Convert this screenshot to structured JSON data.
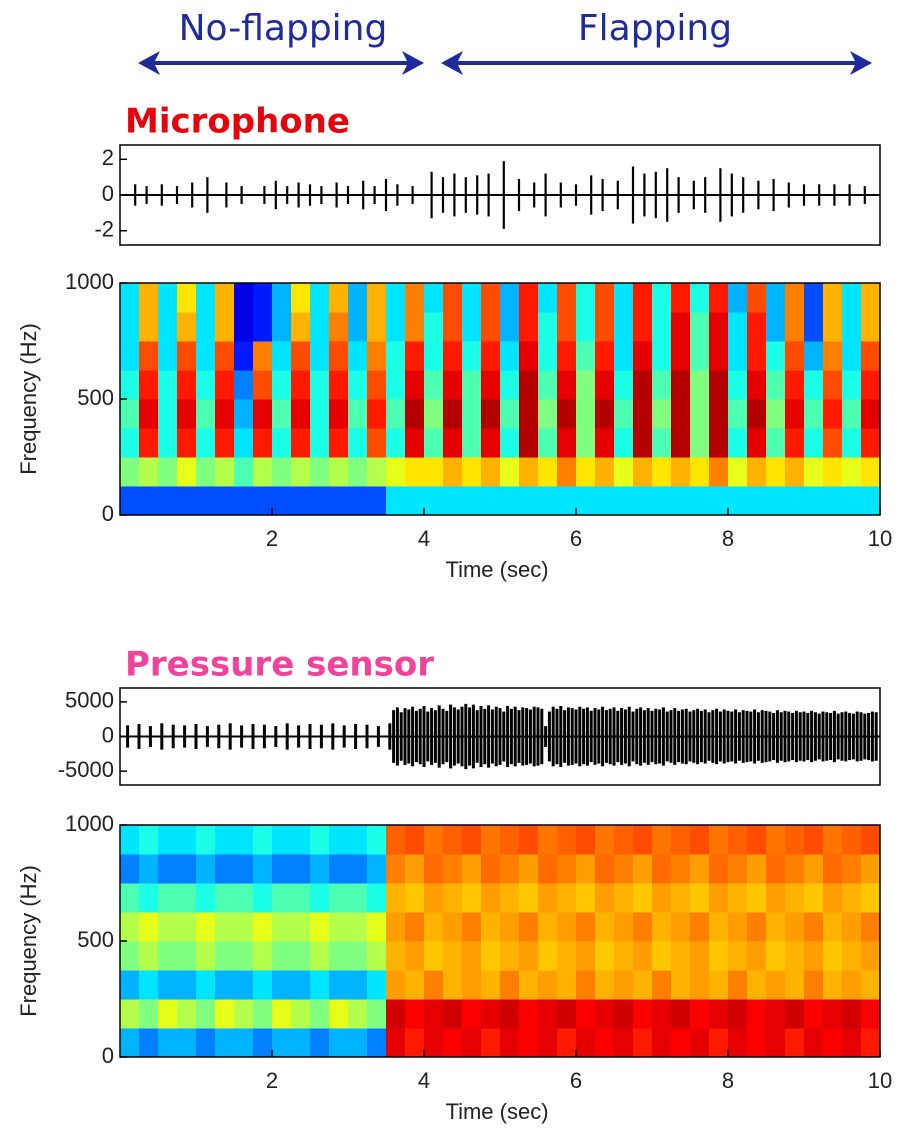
{
  "annotations": [
    "No-flapping",
    "Flapping"
  ],
  "chart_data": [
    {
      "type": "waveform",
      "title": "Microphone",
      "title_color": "#e8000b",
      "color": "#000000",
      "xlim": [
        0,
        10
      ],
      "ylim": [
        -2.8,
        2.8
      ],
      "yticks": [
        -2,
        0,
        2
      ],
      "x": [
        0.2,
        0.35,
        0.55,
        0.75,
        0.95,
        1.15,
        1.4,
        1.6,
        1.9,
        2.05,
        2.2,
        2.35,
        2.5,
        2.65,
        2.85,
        3.0,
        3.2,
        3.35,
        3.5,
        3.65,
        3.85,
        4.1,
        4.25,
        4.4,
        4.55,
        4.7,
        4.85,
        5.05,
        5.25,
        5.45,
        5.6,
        5.8,
        6.0,
        6.2,
        6.35,
        6.55,
        6.75,
        6.9,
        7.05,
        7.2,
        7.35,
        7.55,
        7.7,
        7.9,
        8.05,
        8.2,
        8.4,
        8.6,
        8.8,
        9.0,
        9.2,
        9.4,
        9.6,
        9.8
      ],
      "values": [
        0.6,
        0.5,
        0.6,
        0.5,
        0.7,
        1.0,
        0.7,
        0.5,
        0.5,
        0.8,
        0.5,
        0.7,
        0.6,
        0.5,
        0.7,
        0.5,
        0.8,
        0.5,
        0.9,
        0.6,
        0.5,
        1.3,
        1.0,
        1.2,
        1.0,
        1.1,
        1.2,
        1.9,
        0.9,
        0.7,
        1.2,
        0.7,
        0.6,
        1.1,
        0.9,
        0.8,
        1.6,
        1.2,
        1.3,
        1.5,
        1.0,
        0.8,
        1.0,
        1.5,
        1.2,
        1.0,
        0.8,
        0.9,
        0.7,
        0.6,
        0.6,
        0.6,
        0.6,
        0.5
      ]
    },
    {
      "type": "spectrogram",
      "colormap": "jet",
      "xlabel": "Time (sec)",
      "ylabel": "Frequency (Hz)",
      "xlim": [
        0,
        10
      ],
      "ylim": [
        0,
        1000
      ],
      "xticks": [
        2,
        4,
        6,
        8,
        10
      ],
      "yticks": [
        0,
        500,
        1000
      ],
      "z": [
        [
          0.2,
          0.2,
          0.2,
          0.2,
          0.2,
          0.2,
          0.2,
          0.2,
          0.2,
          0.2,
          0.2,
          0.2,
          0.2,
          0.2,
          0.35,
          0.35,
          0.35,
          0.35,
          0.35,
          0.35,
          0.35,
          0.35,
          0.35,
          0.35,
          0.35,
          0.35,
          0.35,
          0.35,
          0.35,
          0.35,
          0.35,
          0.35,
          0.35,
          0.35,
          0.35,
          0.35,
          0.35,
          0.35,
          0.35,
          0.35
        ],
        [
          0.5,
          0.55,
          0.5,
          0.6,
          0.5,
          0.55,
          0.45,
          0.55,
          0.5,
          0.55,
          0.5,
          0.55,
          0.5,
          0.55,
          0.6,
          0.65,
          0.65,
          0.7,
          0.65,
          0.7,
          0.6,
          0.7,
          0.65,
          0.75,
          0.65,
          0.7,
          0.6,
          0.7,
          0.65,
          0.7,
          0.65,
          0.75,
          0.6,
          0.7,
          0.65,
          0.7,
          0.6,
          0.65,
          0.6,
          0.65
        ],
        [
          0.4,
          0.85,
          0.4,
          0.85,
          0.4,
          0.85,
          0.35,
          0.85,
          0.4,
          0.85,
          0.4,
          0.85,
          0.4,
          0.8,
          0.4,
          0.9,
          0.45,
          0.9,
          0.45,
          0.9,
          0.4,
          0.95,
          0.45,
          0.9,
          0.5,
          0.9,
          0.4,
          0.95,
          0.45,
          0.95,
          0.5,
          0.95,
          0.4,
          0.9,
          0.45,
          0.85,
          0.4,
          0.8,
          0.4,
          0.85
        ],
        [
          0.45,
          0.9,
          0.4,
          0.9,
          0.45,
          0.9,
          0.3,
          0.9,
          0.45,
          0.9,
          0.4,
          0.9,
          0.45,
          0.85,
          0.45,
          0.95,
          0.5,
          0.95,
          0.45,
          0.95,
          0.45,
          0.95,
          0.5,
          0.95,
          0.5,
          0.95,
          0.45,
          0.95,
          0.5,
          0.95,
          0.5,
          0.95,
          0.45,
          0.95,
          0.5,
          0.9,
          0.45,
          0.85,
          0.45,
          0.9
        ],
        [
          0.4,
          0.85,
          0.4,
          0.85,
          0.4,
          0.85,
          0.25,
          0.8,
          0.4,
          0.85,
          0.4,
          0.85,
          0.4,
          0.8,
          0.4,
          0.9,
          0.45,
          0.9,
          0.45,
          0.9,
          0.4,
          0.95,
          0.45,
          0.9,
          0.5,
          0.9,
          0.4,
          0.95,
          0.45,
          0.95,
          0.5,
          0.95,
          0.4,
          0.9,
          0.45,
          0.85,
          0.4,
          0.8,
          0.4,
          0.85
        ],
        [
          0.35,
          0.8,
          0.35,
          0.8,
          0.35,
          0.8,
          0.15,
          0.75,
          0.35,
          0.8,
          0.35,
          0.8,
          0.35,
          0.75,
          0.4,
          0.85,
          0.4,
          0.85,
          0.4,
          0.85,
          0.35,
          0.9,
          0.4,
          0.85,
          0.45,
          0.85,
          0.35,
          0.9,
          0.4,
          0.9,
          0.45,
          0.9,
          0.35,
          0.85,
          0.4,
          0.8,
          0.3,
          0.75,
          0.35,
          0.8
        ],
        [
          0.35,
          0.7,
          0.35,
          0.7,
          0.35,
          0.7,
          0.1,
          0.15,
          0.3,
          0.7,
          0.35,
          0.75,
          0.3,
          0.7,
          0.35,
          0.75,
          0.4,
          0.8,
          0.35,
          0.8,
          0.3,
          0.85,
          0.4,
          0.8,
          0.4,
          0.8,
          0.35,
          0.85,
          0.4,
          0.9,
          0.45,
          0.9,
          0.35,
          0.85,
          0.3,
          0.75,
          0.2,
          0.7,
          0.35,
          0.7
        ],
        [
          0.35,
          0.7,
          0.35,
          0.65,
          0.35,
          0.7,
          0.1,
          0.15,
          0.3,
          0.65,
          0.35,
          0.7,
          0.3,
          0.7,
          0.35,
          0.75,
          0.35,
          0.8,
          0.35,
          0.8,
          0.3,
          0.85,
          0.35,
          0.8,
          0.4,
          0.8,
          0.35,
          0.85,
          0.4,
          0.85,
          0.4,
          0.85,
          0.3,
          0.8,
          0.3,
          0.75,
          0.2,
          0.7,
          0.35,
          0.7
        ]
      ]
    },
    {
      "type": "waveform",
      "title": "Pressure sensor",
      "title_color": "#f0439b",
      "color": "#000000",
      "xlim": [
        0,
        10
      ],
      "ylim": [
        -7000,
        7000
      ],
      "yticks": [
        -5000,
        0,
        5000
      ],
      "x": [
        0.1,
        0.25,
        0.4,
        0.55,
        0.7,
        0.85,
        1.0,
        1.15,
        1.3,
        1.45,
        1.6,
        1.75,
        1.9,
        2.05,
        2.2,
        2.35,
        2.5,
        2.65,
        2.8,
        2.95,
        3.1,
        3.25,
        3.4,
        3.55,
        3.6,
        3.65,
        3.7,
        3.75,
        3.8,
        3.85,
        3.9,
        3.95,
        4,
        4.05,
        4.1,
        4.15,
        4.2,
        4.25,
        4.3,
        4.35,
        4.4,
        4.45,
        4.5,
        4.55,
        4.6,
        4.65,
        4.7,
        4.75,
        4.8,
        4.85,
        4.9,
        4.95,
        5,
        5.05,
        5.1,
        5.15,
        5.2,
        5.25,
        5.3,
        5.35,
        5.4,
        5.45,
        5.5,
        5.55,
        5.6,
        5.65,
        5.7,
        5.75,
        5.8,
        5.85,
        5.9,
        5.95,
        6,
        6.05,
        6.1,
        6.15,
        6.2,
        6.25,
        6.3,
        6.35,
        6.4,
        6.45,
        6.5,
        6.55,
        6.6,
        6.65,
        6.7,
        6.75,
        6.8,
        6.85,
        6.9,
        6.95,
        7,
        7.05,
        7.1,
        7.15,
        7.2,
        7.25,
        7.3,
        7.35,
        7.4,
        7.45,
        7.5,
        7.55,
        7.6,
        7.65,
        7.7,
        7.75,
        7.8,
        7.85,
        7.9,
        7.95,
        8,
        8.05,
        8.1,
        8.15,
        8.2,
        8.25,
        8.3,
        8.35,
        8.4,
        8.45,
        8.5,
        8.55,
        8.6,
        8.65,
        8.7,
        8.75,
        8.8,
        8.85,
        8.9,
        8.95,
        9,
        9.05,
        9.1,
        9.15,
        9.2,
        9.25,
        9.3,
        9.35,
        9.4,
        9.45,
        9.5,
        9.55,
        9.6,
        9.65,
        9.7,
        9.75,
        9.8,
        9.85,
        9.9,
        9.95
      ],
      "values": [
        1600,
        1800,
        1500,
        1900,
        1700,
        1600,
        1800,
        1500,
        1700,
        1900,
        1600,
        1800,
        1700,
        1500,
        1900,
        1600,
        1800,
        1700,
        1900,
        1600,
        1800,
        1700,
        1500,
        1900,
        3800,
        4200,
        3500,
        4100,
        3900,
        4300,
        3700,
        4000,
        4400,
        3600,
        4100,
        3800,
        4500,
        4000,
        3700,
        4600,
        4200,
        3900,
        4300,
        4700,
        4200,
        4600,
        3800,
        4400,
        4000,
        4500,
        3900,
        4300,
        4100,
        3600,
        4400,
        4000,
        4300,
        3800,
        4200,
        4100,
        3900,
        4300,
        4200,
        4000,
        1500,
        3600,
        4300,
        4000,
        4400,
        3800,
        4200,
        4100,
        3900,
        4300,
        4000,
        4200,
        3700,
        4100,
        3900,
        4300,
        3800,
        4000,
        4200,
        3700,
        4100,
        3900,
        4300,
        3600,
        4000,
        4200,
        3800,
        4100,
        3700,
        4000,
        3900,
        4200,
        3600,
        3800,
        4100,
        3700,
        3900,
        4000,
        3600,
        3800,
        4000,
        3700,
        3900,
        3500,
        3800,
        4000,
        3600,
        3900,
        3700,
        3600,
        3900,
        3500,
        3800,
        3700,
        3600,
        3900,
        3500,
        3800,
        3700,
        3600,
        3400,
        3800,
        3500,
        3700,
        3600,
        3400,
        3700,
        3500,
        3600,
        3400,
        3700,
        3500,
        3300,
        3600,
        3500,
        3400,
        3700,
        3300,
        3500,
        3600,
        3400,
        3300,
        3600,
        3500,
        3300,
        3400,
        3600,
        3500
      ]
    },
    {
      "type": "spectrogram",
      "colormap": "jet",
      "xlabel": "Time (sec)",
      "ylabel": "Frequency (Hz)",
      "xlim": [
        0,
        10
      ],
      "ylim": [
        0,
        1000
      ],
      "xticks": [
        2,
        4,
        6,
        8,
        10
      ],
      "yticks": [
        0,
        500,
        1000
      ],
      "z": [
        [
          0.3,
          0.25,
          0.3,
          0.3,
          0.25,
          0.3,
          0.3,
          0.25,
          0.3,
          0.3,
          0.25,
          0.3,
          0.3,
          0.25,
          0.9,
          0.85,
          0.9,
          0.88,
          0.9,
          0.85,
          0.9,
          0.88,
          0.9,
          0.85,
          0.9,
          0.88,
          0.9,
          0.85,
          0.9,
          0.88,
          0.9,
          0.85,
          0.9,
          0.88,
          0.9,
          0.85,
          0.9,
          0.88,
          0.9,
          0.85
        ],
        [
          0.55,
          0.5,
          0.6,
          0.55,
          0.5,
          0.6,
          0.55,
          0.5,
          0.6,
          0.55,
          0.5,
          0.6,
          0.55,
          0.5,
          0.92,
          0.88,
          0.9,
          0.92,
          0.88,
          0.9,
          0.92,
          0.88,
          0.9,
          0.92,
          0.88,
          0.9,
          0.92,
          0.88,
          0.9,
          0.92,
          0.88,
          0.9,
          0.92,
          0.88,
          0.9,
          0.92,
          0.88,
          0.9,
          0.92,
          0.88
        ],
        [
          0.3,
          0.35,
          0.3,
          0.3,
          0.35,
          0.3,
          0.3,
          0.35,
          0.3,
          0.3,
          0.35,
          0.3,
          0.3,
          0.35,
          0.72,
          0.7,
          0.75,
          0.7,
          0.72,
          0.7,
          0.75,
          0.7,
          0.72,
          0.7,
          0.75,
          0.7,
          0.72,
          0.7,
          0.75,
          0.7,
          0.72,
          0.7,
          0.75,
          0.7,
          0.72,
          0.7,
          0.75,
          0.7,
          0.72,
          0.7
        ],
        [
          0.5,
          0.55,
          0.5,
          0.5,
          0.55,
          0.5,
          0.5,
          0.55,
          0.5,
          0.5,
          0.55,
          0.5,
          0.5,
          0.55,
          0.7,
          0.72,
          0.68,
          0.7,
          0.72,
          0.68,
          0.7,
          0.72,
          0.68,
          0.7,
          0.72,
          0.68,
          0.7,
          0.72,
          0.68,
          0.7,
          0.72,
          0.68,
          0.7,
          0.72,
          0.68,
          0.7,
          0.72,
          0.68,
          0.7,
          0.72
        ],
        [
          0.55,
          0.6,
          0.55,
          0.55,
          0.6,
          0.55,
          0.55,
          0.6,
          0.55,
          0.55,
          0.6,
          0.55,
          0.55,
          0.6,
          0.72,
          0.75,
          0.7,
          0.72,
          0.75,
          0.7,
          0.72,
          0.75,
          0.7,
          0.72,
          0.75,
          0.7,
          0.72,
          0.75,
          0.7,
          0.72,
          0.75,
          0.7,
          0.72,
          0.75,
          0.7,
          0.72,
          0.75,
          0.7,
          0.72,
          0.75
        ],
        [
          0.45,
          0.4,
          0.45,
          0.45,
          0.4,
          0.45,
          0.45,
          0.4,
          0.45,
          0.45,
          0.4,
          0.45,
          0.45,
          0.4,
          0.7,
          0.68,
          0.72,
          0.7,
          0.68,
          0.72,
          0.7,
          0.68,
          0.72,
          0.7,
          0.68,
          0.72,
          0.7,
          0.68,
          0.72,
          0.7,
          0.68,
          0.72,
          0.7,
          0.68,
          0.72,
          0.7,
          0.68,
          0.72,
          0.7,
          0.68
        ],
        [
          0.25,
          0.3,
          0.25,
          0.25,
          0.3,
          0.25,
          0.25,
          0.3,
          0.25,
          0.25,
          0.3,
          0.25,
          0.25,
          0.3,
          0.75,
          0.72,
          0.77,
          0.75,
          0.72,
          0.77,
          0.75,
          0.72,
          0.77,
          0.75,
          0.72,
          0.77,
          0.75,
          0.72,
          0.77,
          0.75,
          0.72,
          0.77,
          0.75,
          0.72,
          0.77,
          0.75,
          0.72,
          0.77,
          0.75,
          0.72
        ],
        [
          0.35,
          0.4,
          0.35,
          0.35,
          0.4,
          0.35,
          0.35,
          0.4,
          0.35,
          0.35,
          0.4,
          0.35,
          0.35,
          0.4,
          0.78,
          0.8,
          0.76,
          0.78,
          0.8,
          0.76,
          0.78,
          0.8,
          0.76,
          0.78,
          0.8,
          0.76,
          0.78,
          0.8,
          0.76,
          0.78,
          0.8,
          0.76,
          0.78,
          0.8,
          0.76,
          0.78,
          0.8,
          0.76,
          0.78,
          0.8
        ]
      ]
    }
  ]
}
